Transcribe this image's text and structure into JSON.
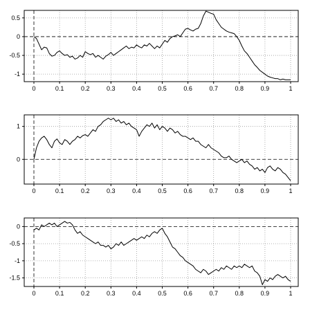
{
  "chart_data": [
    {
      "type": "line",
      "title": "",
      "xlabel": "",
      "ylabel": "",
      "xlim": [
        0,
        1
      ],
      "ylim": [
        -1.2,
        0.7
      ],
      "xticks": [
        0,
        0.1,
        0.2,
        0.3,
        0.4,
        0.5,
        0.6,
        0.7,
        0.8,
        0.9,
        1
      ],
      "yticks": [
        0.5,
        0,
        -0.5,
        -1
      ],
      "grid": true,
      "reference_lines": {
        "x": 0,
        "y": 0
      },
      "series": [
        {
          "x": [
            0,
            0.01,
            0.02,
            0.03,
            0.04,
            0.05,
            0.06,
            0.07,
            0.08,
            0.09,
            0.1,
            0.11,
            0.12,
            0.13,
            0.14,
            0.15,
            0.16,
            0.17,
            0.18,
            0.19,
            0.2,
            0.21,
            0.22,
            0.23,
            0.24,
            0.25,
            0.26,
            0.27,
            0.28,
            0.29,
            0.3,
            0.31,
            0.32,
            0.33,
            0.34,
            0.35,
            0.36,
            0.37,
            0.38,
            0.39,
            0.4,
            0.41,
            0.42,
            0.43,
            0.44,
            0.45,
            0.46,
            0.47,
            0.48,
            0.49,
            0.5,
            0.51,
            0.52,
            0.53,
            0.54,
            0.55,
            0.56,
            0.57,
            0.58,
            0.59,
            0.6,
            0.61,
            0.62,
            0.63,
            0.64,
            0.65,
            0.66,
            0.67,
            0.68,
            0.69,
            0.7,
            0.71,
            0.72,
            0.73,
            0.74,
            0.75,
            0.76,
            0.77,
            0.78,
            0.79,
            0.8,
            0.81,
            0.82,
            0.83,
            0.84,
            0.85,
            0.86,
            0.87,
            0.88,
            0.89,
            0.9,
            0.91,
            0.92,
            0.93,
            0.94,
            0.95,
            0.96,
            0.97,
            0.98,
            0.99,
            1
          ],
          "y": [
            0.0,
            -0.05,
            -0.2,
            -0.35,
            -0.28,
            -0.3,
            -0.45,
            -0.52,
            -0.5,
            -0.42,
            -0.38,
            -0.45,
            -0.5,
            -0.48,
            -0.55,
            -0.52,
            -0.6,
            -0.57,
            -0.5,
            -0.55,
            -0.4,
            -0.45,
            -0.48,
            -0.45,
            -0.55,
            -0.5,
            -0.55,
            -0.6,
            -0.52,
            -0.48,
            -0.42,
            -0.5,
            -0.45,
            -0.4,
            -0.35,
            -0.3,
            -0.25,
            -0.32,
            -0.28,
            -0.3,
            -0.22,
            -0.27,
            -0.3,
            -0.22,
            -0.25,
            -0.18,
            -0.25,
            -0.32,
            -0.25,
            -0.3,
            -0.2,
            -0.1,
            -0.15,
            -0.05,
            0.0,
            0.02,
            0.05,
            0.0,
            0.1,
            0.2,
            0.22,
            0.18,
            0.15,
            0.2,
            0.22,
            0.35,
            0.55,
            0.68,
            0.65,
            0.62,
            0.6,
            0.45,
            0.35,
            0.25,
            0.2,
            0.15,
            0.12,
            0.1,
            0.08,
            0.0,
            -0.1,
            -0.25,
            -0.38,
            -0.45,
            -0.55,
            -0.65,
            -0.75,
            -0.82,
            -0.9,
            -0.95,
            -1.0,
            -1.05,
            -1.08,
            -1.1,
            -1.12,
            -1.12,
            -1.15,
            -1.13,
            -1.15,
            -1.15,
            -1.15
          ]
        }
      ]
    },
    {
      "type": "line",
      "title": "",
      "xlabel": "",
      "ylabel": "",
      "xlim": [
        0,
        1
      ],
      "ylim": [
        -0.75,
        1.35
      ],
      "xticks": [
        0,
        0.1,
        0.2,
        0.3,
        0.4,
        0.5,
        0.6,
        0.7,
        0.8,
        0.9,
        1
      ],
      "yticks": [
        1,
        0
      ],
      "grid": true,
      "reference_lines": {
        "x": 0,
        "y": 0
      },
      "series": [
        {
          "x": [
            0,
            0.01,
            0.02,
            0.03,
            0.04,
            0.05,
            0.06,
            0.07,
            0.08,
            0.09,
            0.1,
            0.11,
            0.12,
            0.13,
            0.14,
            0.15,
            0.16,
            0.17,
            0.18,
            0.19,
            0.2,
            0.21,
            0.22,
            0.23,
            0.24,
            0.25,
            0.26,
            0.27,
            0.28,
            0.29,
            0.3,
            0.31,
            0.32,
            0.33,
            0.34,
            0.35,
            0.36,
            0.37,
            0.38,
            0.39,
            0.4,
            0.41,
            0.42,
            0.43,
            0.44,
            0.45,
            0.46,
            0.47,
            0.48,
            0.49,
            0.5,
            0.51,
            0.52,
            0.53,
            0.54,
            0.55,
            0.56,
            0.57,
            0.58,
            0.59,
            0.6,
            0.61,
            0.62,
            0.63,
            0.64,
            0.65,
            0.66,
            0.67,
            0.68,
            0.69,
            0.7,
            0.71,
            0.72,
            0.73,
            0.74,
            0.75,
            0.76,
            0.77,
            0.78,
            0.79,
            0.8,
            0.81,
            0.82,
            0.83,
            0.84,
            0.85,
            0.86,
            0.87,
            0.88,
            0.89,
            0.9,
            0.91,
            0.92,
            0.93,
            0.94,
            0.95,
            0.96,
            0.97,
            0.98,
            0.99,
            1
          ],
          "y": [
            0.0,
            0.35,
            0.55,
            0.65,
            0.7,
            0.6,
            0.45,
            0.35,
            0.55,
            0.62,
            0.5,
            0.45,
            0.6,
            0.55,
            0.45,
            0.55,
            0.6,
            0.7,
            0.65,
            0.72,
            0.75,
            0.7,
            0.8,
            0.9,
            0.85,
            1.0,
            1.05,
            1.15,
            1.2,
            1.25,
            1.2,
            1.25,
            1.15,
            1.2,
            1.1,
            1.15,
            1.05,
            1.1,
            1.0,
            0.95,
            0.9,
            0.7,
            0.85,
            0.95,
            1.05,
            1.0,
            1.1,
            0.95,
            1.05,
            0.9,
            1.0,
            0.95,
            0.85,
            0.95,
            0.9,
            0.8,
            0.85,
            0.75,
            0.7,
            0.7,
            0.65,
            0.6,
            0.65,
            0.55,
            0.55,
            0.45,
            0.4,
            0.35,
            0.45,
            0.35,
            0.3,
            0.25,
            0.2,
            0.1,
            0.05,
            0.05,
            0.1,
            0.0,
            -0.05,
            -0.1,
            -0.05,
            0.0,
            -0.1,
            -0.05,
            -0.15,
            -0.2,
            -0.3,
            -0.25,
            -0.35,
            -0.3,
            -0.4,
            -0.25,
            -0.2,
            -0.3,
            -0.35,
            -0.25,
            -0.3,
            -0.4,
            -0.45,
            -0.55,
            -0.65
          ]
        }
      ]
    },
    {
      "type": "line",
      "title": "",
      "xlabel": "",
      "ylabel": "",
      "xlim": [
        0,
        1
      ],
      "ylim": [
        -1.75,
        0.25
      ],
      "xticks": [
        0,
        0.1,
        0.2,
        0.3,
        0.4,
        0.5,
        0.6,
        0.7,
        0.8,
        0.9,
        1
      ],
      "yticks": [
        0,
        -0.5,
        -1,
        -1.5
      ],
      "grid": true,
      "reference_lines": {
        "x": 0,
        "y": 0
      },
      "series": [
        {
          "x": [
            0,
            0.01,
            0.02,
            0.03,
            0.04,
            0.05,
            0.06,
            0.07,
            0.08,
            0.09,
            0.1,
            0.11,
            0.12,
            0.13,
            0.14,
            0.15,
            0.16,
            0.17,
            0.18,
            0.19,
            0.2,
            0.21,
            0.22,
            0.23,
            0.24,
            0.25,
            0.26,
            0.27,
            0.28,
            0.29,
            0.3,
            0.31,
            0.32,
            0.33,
            0.34,
            0.35,
            0.36,
            0.37,
            0.38,
            0.39,
            0.4,
            0.41,
            0.42,
            0.43,
            0.44,
            0.45,
            0.46,
            0.47,
            0.48,
            0.49,
            0.5,
            0.51,
            0.52,
            0.53,
            0.54,
            0.55,
            0.56,
            0.57,
            0.58,
            0.59,
            0.6,
            0.61,
            0.62,
            0.63,
            0.64,
            0.65,
            0.66,
            0.67,
            0.68,
            0.69,
            0.7,
            0.71,
            0.72,
            0.73,
            0.74,
            0.75,
            0.76,
            0.77,
            0.78,
            0.79,
            0.8,
            0.81,
            0.82,
            0.83,
            0.84,
            0.85,
            0.86,
            0.87,
            0.88,
            0.89,
            0.9,
            0.91,
            0.92,
            0.93,
            0.94,
            0.95,
            0.96,
            0.97,
            0.98,
            0.99,
            1
          ],
          "y": [
            -0.1,
            -0.05,
            -0.1,
            0.05,
            0.0,
            0.05,
            0.1,
            0.05,
            0.1,
            0.0,
            0.05,
            0.1,
            0.15,
            0.1,
            0.12,
            0.05,
            -0.1,
            -0.2,
            -0.15,
            -0.25,
            -0.3,
            -0.35,
            -0.4,
            -0.45,
            -0.5,
            -0.45,
            -0.55,
            -0.55,
            -0.6,
            -0.55,
            -0.65,
            -0.6,
            -0.5,
            -0.55,
            -0.45,
            -0.55,
            -0.5,
            -0.45,
            -0.4,
            -0.35,
            -0.4,
            -0.35,
            -0.3,
            -0.35,
            -0.25,
            -0.3,
            -0.2,
            -0.15,
            -0.2,
            -0.1,
            -0.05,
            -0.2,
            -0.3,
            -0.45,
            -0.6,
            -0.65,
            -0.75,
            -0.85,
            -0.9,
            -1.0,
            -1.05,
            -1.1,
            -1.15,
            -1.25,
            -1.3,
            -1.35,
            -1.25,
            -1.3,
            -1.4,
            -1.35,
            -1.3,
            -1.25,
            -1.3,
            -1.2,
            -1.25,
            -1.15,
            -1.2,
            -1.25,
            -1.15,
            -1.2,
            -1.15,
            -1.2,
            -1.1,
            -1.15,
            -1.2,
            -1.15,
            -1.3,
            -1.35,
            -1.45,
            -1.7,
            -1.55,
            -1.6,
            -1.5,
            -1.55,
            -1.45,
            -1.4,
            -1.45,
            -1.5,
            -1.45,
            -1.55,
            -1.6
          ]
        }
      ]
    }
  ]
}
